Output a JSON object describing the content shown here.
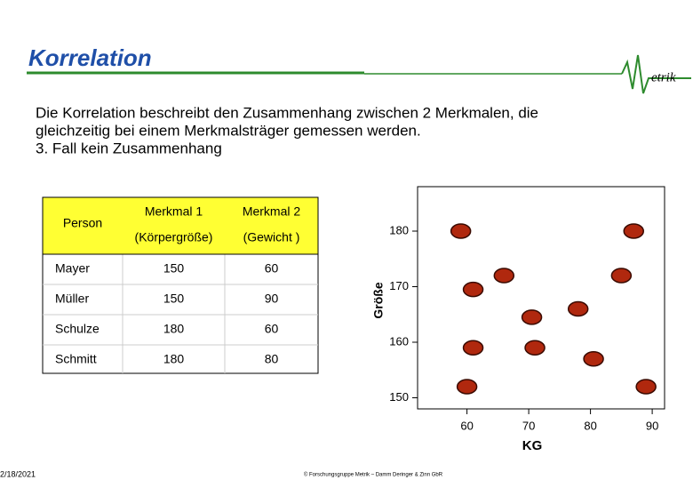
{
  "slide": {
    "title": "Korrelation",
    "logo": "etrik",
    "body": [
      "Die Korrelation beschreibt den Zusammenhang zwischen 2 Merkmalen, die",
      "gleichzeitig bei einem Merkmalsträger gemessen werden.",
      "3. Fall kein Zusammenhang"
    ],
    "date": "2/18/2021",
    "footer": "© Forschungsgruppe Metrik – Damm Deringer & Zinn GbR"
  },
  "table": {
    "header": [
      [
        "Person"
      ],
      [
        "Merkmal 1",
        "(Körpergröße)"
      ],
      [
        "Merkmal 2",
        "(Gewicht )"
      ]
    ],
    "rows": [
      [
        "Mayer",
        "150",
        "60"
      ],
      [
        "Müller",
        "150",
        "90"
      ],
      [
        "Schulze",
        "180",
        "60"
      ],
      [
        "Schmitt",
        "180",
        "80"
      ]
    ]
  },
  "chart_data": {
    "type": "scatter",
    "x_label": "KG",
    "y_label": "Größe",
    "color": "#b0280e",
    "x": [
      59,
      87,
      66,
      85,
      61,
      78,
      70.5,
      61,
      71,
      80.5,
      60,
      89
    ],
    "values": [
      180,
      180,
      172,
      172,
      169.5,
      166,
      164.5,
      159,
      159,
      157,
      152,
      152
    ],
    "xlim": [
      52,
      92
    ],
    "xticks": [
      60,
      70,
      80,
      90
    ],
    "ylim": [
      148,
      188
    ],
    "yticks": [
      150,
      160,
      170,
      180
    ]
  }
}
